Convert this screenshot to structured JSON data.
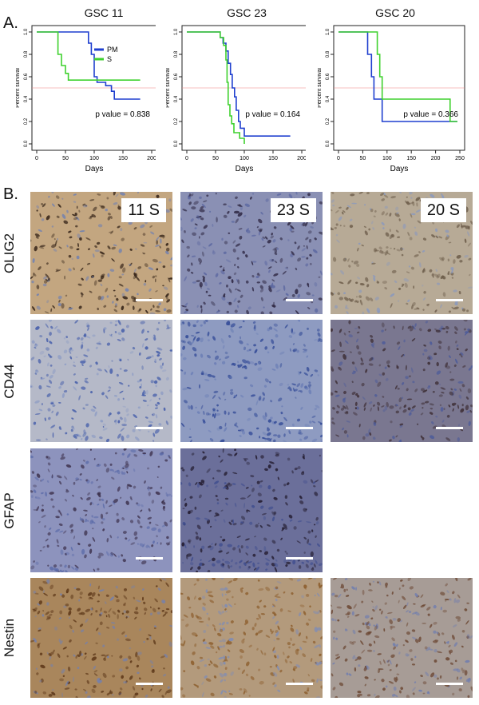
{
  "panel_a_label": "A.",
  "panel_b_label": "B.",
  "chart_data": [
    {
      "type": "line",
      "title": "GSC 11",
      "xlabel": "Days",
      "ylabel": "Percent survival",
      "xlim": [
        0,
        200
      ],
      "ylim": [
        0,
        1.0
      ],
      "xticks": [
        "0",
        "50",
        "100",
        "150",
        "200"
      ],
      "yticks": [
        "0.0",
        "0.2",
        "0.4",
        "0.6",
        "0.8",
        "1.0"
      ],
      "reference_y": 0.5,
      "legend": [
        "PM",
        "S"
      ],
      "legend_position": "top-right",
      "annotation": "p value = 0.838",
      "series": [
        {
          "name": "PM",
          "color": "#1f3fcf",
          "steps": [
            [
              0,
              1.0
            ],
            [
              90,
              1.0
            ],
            [
              90,
              0.9
            ],
            [
              95,
              0.9
            ],
            [
              95,
              0.8
            ],
            [
              100,
              0.8
            ],
            [
              100,
              0.6
            ],
            [
              105,
              0.6
            ],
            [
              105,
              0.55
            ],
            [
              120,
              0.55
            ],
            [
              120,
              0.52
            ],
            [
              130,
              0.52
            ],
            [
              130,
              0.47
            ],
            [
              135,
              0.47
            ],
            [
              135,
              0.4
            ],
            [
              180,
              0.4
            ]
          ]
        },
        {
          "name": "S",
          "color": "#3fd12e",
          "steps": [
            [
              0,
              1.0
            ],
            [
              37,
              1.0
            ],
            [
              37,
              0.8
            ],
            [
              43,
              0.8
            ],
            [
              43,
              0.7
            ],
            [
              50,
              0.7
            ],
            [
              50,
              0.63
            ],
            [
              55,
              0.63
            ],
            [
              55,
              0.57
            ],
            [
              180,
              0.57
            ]
          ]
        }
      ]
    },
    {
      "type": "line",
      "title": "GSC 23",
      "xlabel": "Days",
      "ylabel": "Percent survival",
      "xlim": [
        0,
        200
      ],
      "ylim": [
        0,
        1.0
      ],
      "xticks": [
        "0",
        "50",
        "100",
        "150",
        "200"
      ],
      "yticks": [
        "0.0",
        "0.2",
        "0.4",
        "0.6",
        "0.8",
        "1.0"
      ],
      "reference_y": 0.5,
      "annotation": "p value = 0.164",
      "series": [
        {
          "name": "PM",
          "color": "#1f3fcf",
          "steps": [
            [
              0,
              1.0
            ],
            [
              58,
              1.0
            ],
            [
              58,
              0.95
            ],
            [
              63,
              0.95
            ],
            [
              63,
              0.9
            ],
            [
              68,
              0.9
            ],
            [
              68,
              0.83
            ],
            [
              72,
              0.83
            ],
            [
              72,
              0.72
            ],
            [
              76,
              0.72
            ],
            [
              76,
              0.62
            ],
            [
              79,
              0.62
            ],
            [
              79,
              0.5
            ],
            [
              83,
              0.5
            ],
            [
              83,
              0.42
            ],
            [
              86,
              0.42
            ],
            [
              86,
              0.3
            ],
            [
              90,
              0.3
            ],
            [
              90,
              0.2
            ],
            [
              93,
              0.2
            ],
            [
              93,
              0.14
            ],
            [
              100,
              0.14
            ],
            [
              100,
              0.07
            ],
            [
              180,
              0.07
            ]
          ]
        },
        {
          "name": "S",
          "color": "#3fd12e",
          "steps": [
            [
              0,
              1.0
            ],
            [
              58,
              1.0
            ],
            [
              58,
              0.95
            ],
            [
              64,
              0.95
            ],
            [
              64,
              0.88
            ],
            [
              68,
              0.88
            ],
            [
              68,
              0.75
            ],
            [
              70,
              0.75
            ],
            [
              70,
              0.55
            ],
            [
              72,
              0.55
            ],
            [
              72,
              0.35
            ],
            [
              75,
              0.35
            ],
            [
              75,
              0.25
            ],
            [
              78,
              0.25
            ],
            [
              78,
              0.18
            ],
            [
              82,
              0.18
            ],
            [
              82,
              0.1
            ],
            [
              92,
              0.1
            ],
            [
              92,
              0.05
            ],
            [
              100,
              0.05
            ],
            [
              100,
              0.0
            ]
          ]
        }
      ]
    },
    {
      "type": "line",
      "title": "GSC 20",
      "xlabel": "Days",
      "ylabel": "Percent survival",
      "xlim": [
        0,
        250
      ],
      "ylim": [
        0,
        1.0
      ],
      "xticks": [
        "0",
        "50",
        "100",
        "150",
        "200",
        "250"
      ],
      "yticks": [
        "0.0",
        "0.2",
        "0.4",
        "0.6",
        "0.8",
        "1.0"
      ],
      "reference_y": 0.5,
      "annotation": "p value = 0.366",
      "series": [
        {
          "name": "PM",
          "color": "#1f3fcf",
          "steps": [
            [
              0,
              1.0
            ],
            [
              60,
              1.0
            ],
            [
              60,
              0.8
            ],
            [
              68,
              0.8
            ],
            [
              68,
              0.6
            ],
            [
              73,
              0.6
            ],
            [
              73,
              0.4
            ],
            [
              90,
              0.4
            ],
            [
              90,
              0.2
            ],
            [
              245,
              0.2
            ]
          ]
        },
        {
          "name": "S",
          "color": "#3fd12e",
          "steps": [
            [
              0,
              1.0
            ],
            [
              80,
              1.0
            ],
            [
              80,
              0.8
            ],
            [
              85,
              0.8
            ],
            [
              85,
              0.6
            ],
            [
              90,
              0.6
            ],
            [
              90,
              0.4
            ],
            [
              230,
              0.4
            ],
            [
              230,
              0.2
            ],
            [
              245,
              0.2
            ]
          ]
        }
      ]
    }
  ],
  "ihc": {
    "rows": [
      {
        "stain": "OLIG2",
        "tiles": [
          {
            "label": "11 S",
            "bg": "#c3a680",
            "cell": "#2a1a10",
            "tint": "#6d7fb3"
          },
          {
            "label": "23 S",
            "bg": "#8a90b4",
            "cell": "#2c2540",
            "tint": "#5a66a0"
          },
          {
            "label": "20 S",
            "bg": "#b7aa96",
            "cell": "#6a5a48",
            "tint": "#8898bf"
          }
        ]
      },
      {
        "stain": "CD44",
        "tiles": [
          {
            "label": "",
            "bg": "#b5b9c8",
            "cell": "#3d57a8",
            "tint": "#8c9bc4"
          },
          {
            "label": "",
            "bg": "#8e9bc1",
            "cell": "#2f4795",
            "tint": "#6a7db5"
          },
          {
            "label": "",
            "bg": "#7a7790",
            "cell": "#3a2a30",
            "tint": "#4b5a9a"
          }
        ]
      },
      {
        "stain": "GFAP",
        "tiles": [
          {
            "label": "",
            "bg": "#8d93bd",
            "cell": "#3b2f4a",
            "tint": "#5a6aa8"
          },
          {
            "label": "",
            "bg": "#6b6f9a",
            "cell": "#20182a",
            "tint": "#3f4d8e"
          }
        ]
      },
      {
        "stain": "Nestin",
        "tiles": [
          {
            "label": "",
            "bg": "#a9865c",
            "cell": "#5a3416",
            "tint": "#7280b0"
          },
          {
            "label": "",
            "bg": "#b39a7c",
            "cell": "#8a5a28",
            "tint": "#7d8cb8"
          },
          {
            "label": "",
            "bg": "#a79c96",
            "cell": "#6a4530",
            "tint": "#6d7cb0"
          }
        ]
      }
    ]
  }
}
